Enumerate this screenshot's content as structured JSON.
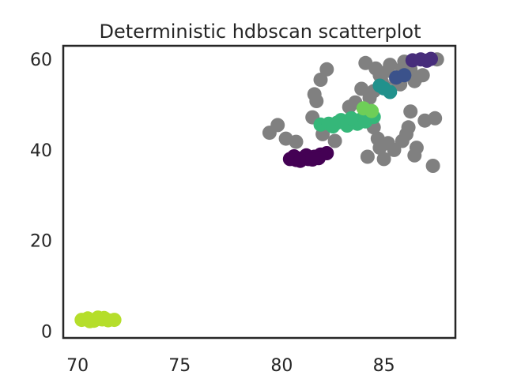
{
  "chart_data": {
    "type": "scatter",
    "title": "Deterministic hdbscan scatterplot",
    "xlabel": "",
    "ylabel": "",
    "xlim": [
      69.3,
      88.5
    ],
    "ylim": [
      -1.5,
      63
    ],
    "x_ticks": [
      70,
      75,
      80,
      85
    ],
    "y_ticks": [
      0,
      20,
      40,
      60
    ],
    "x_tick_labels": [
      "70",
      "75",
      "80",
      "85"
    ],
    "y_tick_labels": [
      "0",
      "20",
      "40",
      "60"
    ],
    "grid": false,
    "legend": "none",
    "colors": {
      "noise": "#808080",
      "cluster_lime": "#b5de2b",
      "cluster_darkpurple": "#440154",
      "cluster_green": "#35b779",
      "cluster_lightgreen": "#6ece58",
      "cluster_indigo": "#472d7b",
      "cluster_teal": "#21918c",
      "cluster_blue": "#3b528b",
      "axis": "#262626"
    },
    "series": [
      {
        "color_key": "noise",
        "points": [
          [
            79.4,
            43.8
          ],
          [
            79.8,
            45.5
          ],
          [
            80.2,
            42.5
          ],
          [
            80.7,
            41.8
          ],
          [
            81.5,
            47.2
          ],
          [
            81.6,
            52.3
          ],
          [
            81.7,
            50.8
          ],
          [
            81.9,
            55.5
          ],
          [
            82.2,
            57.8
          ],
          [
            82.0,
            43.5
          ],
          [
            82.6,
            42.0
          ],
          [
            83.3,
            49.5
          ],
          [
            83.6,
            50.5
          ],
          [
            83.9,
            53.5
          ],
          [
            84.1,
            59.2
          ],
          [
            84.3,
            51.5
          ],
          [
            84.5,
            45.0
          ],
          [
            84.2,
            38.5
          ],
          [
            84.7,
            42.5
          ],
          [
            84.8,
            40.5
          ],
          [
            85.0,
            38.0
          ],
          [
            85.2,
            41.5
          ],
          [
            85.5,
            40.0
          ],
          [
            85.9,
            42.0
          ],
          [
            86.1,
            43.5
          ],
          [
            86.2,
            45.0
          ],
          [
            86.3,
            48.5
          ],
          [
            86.5,
            38.8
          ],
          [
            86.6,
            40.5
          ],
          [
            87.0,
            46.5
          ],
          [
            87.4,
            36.5
          ],
          [
            87.5,
            47.0
          ],
          [
            84.8,
            56.5
          ],
          [
            85.2,
            57.5
          ],
          [
            85.6,
            55.5
          ],
          [
            85.9,
            58.0
          ],
          [
            86.3,
            57.8
          ],
          [
            86.6,
            56.0
          ],
          [
            86.9,
            56.5
          ],
          [
            85.0,
            54.0
          ],
          [
            84.6,
            58.0
          ],
          [
            85.8,
            54.5
          ],
          [
            86.0,
            59.5
          ],
          [
            84.5,
            53.0
          ],
          [
            85.3,
            58.8
          ],
          [
            86.5,
            55.2
          ],
          [
            84.9,
            55.0
          ],
          [
            87.6,
            60.0
          ]
        ]
      },
      {
        "color_key": "cluster_lime",
        "points": [
          [
            70.2,
            2.5
          ],
          [
            70.5,
            2.8
          ],
          [
            70.8,
            2.3
          ],
          [
            71.0,
            3.0
          ],
          [
            71.2,
            2.6
          ],
          [
            71.5,
            2.4
          ],
          [
            71.8,
            2.5
          ],
          [
            70.6,
            2.2
          ],
          [
            71.3,
            2.9
          ],
          [
            70.9,
            2.6
          ]
        ]
      },
      {
        "color_key": "cluster_darkpurple",
        "points": [
          [
            80.4,
            38.0
          ],
          [
            80.7,
            37.8
          ],
          [
            81.0,
            38.2
          ],
          [
            81.3,
            38.0
          ],
          [
            81.6,
            38.5
          ],
          [
            81.9,
            39.0
          ],
          [
            82.2,
            39.3
          ],
          [
            80.6,
            38.6
          ],
          [
            81.2,
            38.8
          ],
          [
            81.8,
            38.2
          ],
          [
            80.9,
            37.6
          ],
          [
            81.5,
            37.9
          ]
        ]
      },
      {
        "color_key": "cluster_green",
        "points": [
          [
            81.9,
            45.6
          ],
          [
            82.3,
            45.8
          ],
          [
            82.7,
            46.0
          ],
          [
            83.1,
            46.2
          ],
          [
            83.5,
            46.5
          ],
          [
            83.9,
            46.8
          ],
          [
            84.2,
            47.0
          ],
          [
            84.5,
            47.3
          ],
          [
            82.5,
            45.2
          ],
          [
            83.2,
            45.4
          ],
          [
            83.7,
            45.8
          ],
          [
            84.1,
            46.3
          ],
          [
            82.9,
            46.6
          ],
          [
            83.4,
            47.0
          ],
          [
            84.4,
            48.0
          ]
        ]
      },
      {
        "color_key": "cluster_lightgreen",
        "points": [
          [
            84.0,
            49.2
          ],
          [
            84.4,
            48.6
          ]
        ]
      },
      {
        "color_key": "cluster_indigo",
        "points": [
          [
            86.4,
            59.8
          ],
          [
            86.8,
            60.0
          ],
          [
            87.1,
            59.7
          ],
          [
            87.3,
            60.1
          ]
        ]
      },
      {
        "color_key": "cluster_teal",
        "points": [
          [
            84.8,
            54.2
          ],
          [
            85.3,
            52.8
          ],
          [
            85.0,
            53.6
          ]
        ]
      },
      {
        "color_key": "cluster_blue",
        "points": [
          [
            85.6,
            56.0
          ],
          [
            86.0,
            56.5
          ]
        ]
      }
    ]
  }
}
